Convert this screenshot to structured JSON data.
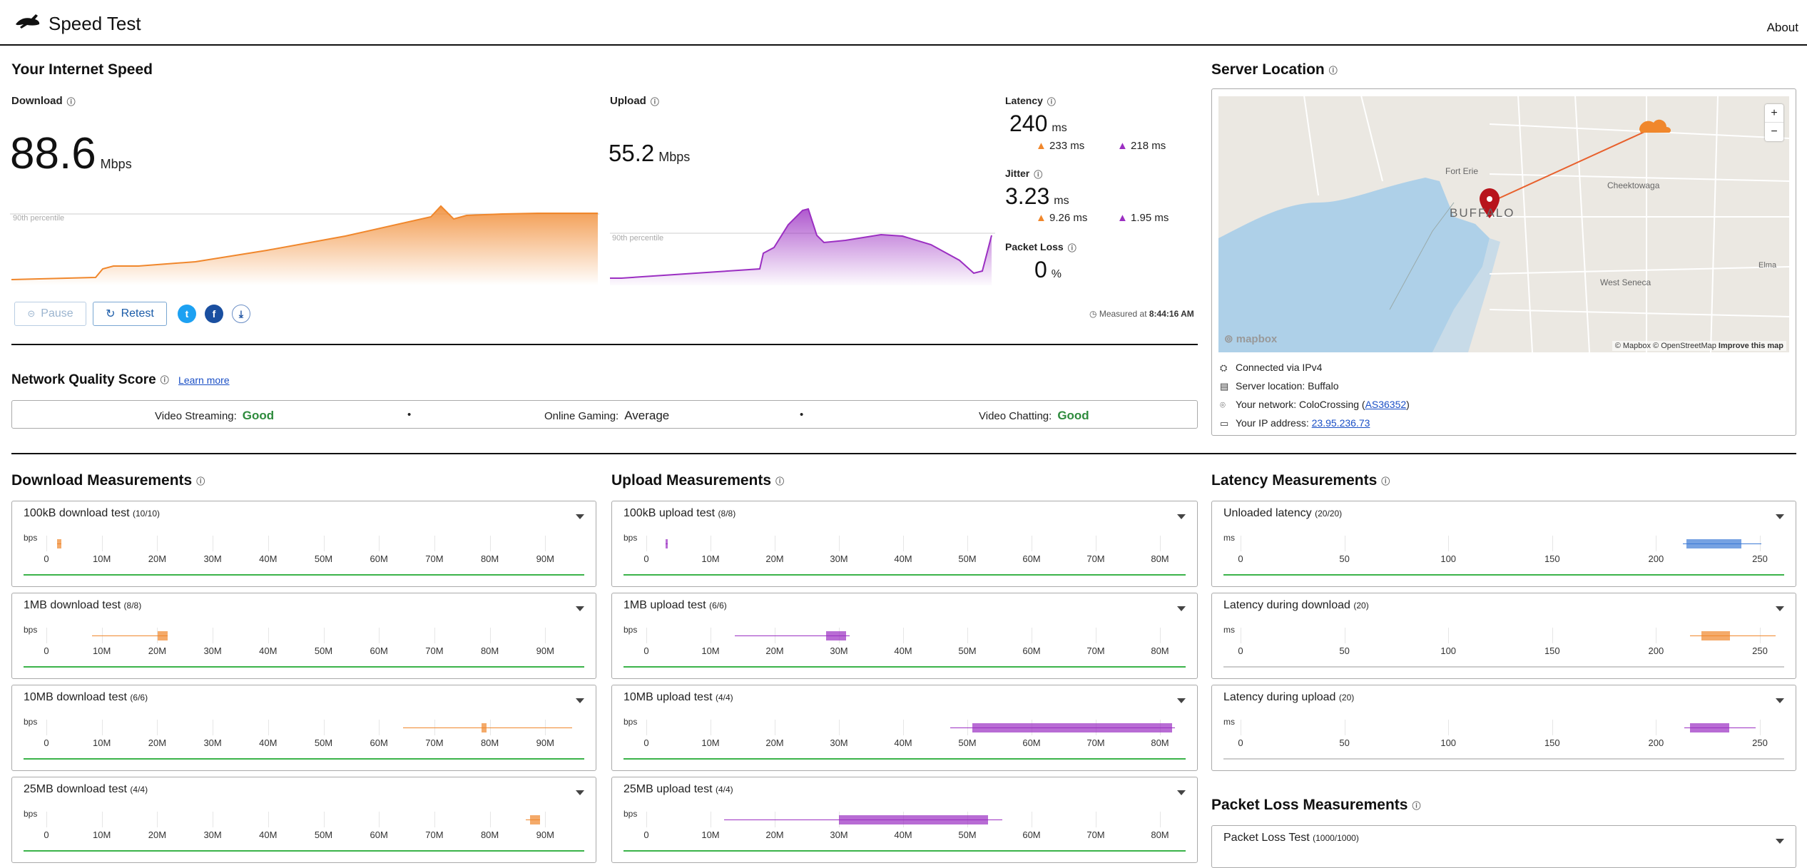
{
  "header": {
    "title": "Speed Test",
    "about": "About"
  },
  "speed": {
    "section_title": "Your Internet Speed",
    "download_label": "Download",
    "download_value": "88.6",
    "download_unit": "Mbps",
    "upload_label": "Upload",
    "upload_value": "55.2",
    "upload_unit": "Mbps",
    "percentile_label": "90th percentile",
    "latency_label": "Latency",
    "latency_value": "240",
    "latency_unit": "ms",
    "latency_down": "233",
    "latency_up": "218",
    "jitter_label": "Jitter",
    "jitter_value": "3.23",
    "jitter_unit": "ms",
    "jitter_down": "9.26",
    "jitter_up": "1.95",
    "ms": "ms",
    "packet_loss_label": "Packet Loss",
    "packet_loss_value": "0",
    "packet_loss_unit": "%",
    "pause_label": "Pause",
    "retest_label": "Retest",
    "measured_prefix": "Measured at",
    "measured_time": "8:44:16 AM",
    "colors": {
      "download": "#f0872c",
      "upload": "#9b2fc2",
      "good": "#2e8b3d",
      "link": "#1a4fc6"
    }
  },
  "quality": {
    "title": "Network Quality Score",
    "learn_more": "Learn more",
    "items": [
      {
        "label": "Video Streaming:",
        "value": "Good"
      },
      {
        "label": "Online Gaming:",
        "value": "Average"
      },
      {
        "label": "Video Chatting:",
        "value": "Good"
      }
    ],
    "separator": "•"
  },
  "server": {
    "title": "Server Location",
    "map_labels": {
      "fort_erie": "Fort Erie",
      "buffalo": "BUFFALO",
      "cheektowaga": "Cheektowaga",
      "west_seneca": "West Seneca",
      "road": "Elma"
    },
    "zoom_in": "+",
    "zoom_out": "−",
    "map_brand": "mapbox",
    "attribution": "© Mapbox © OpenStreetMap",
    "improve": "Improve this map",
    "connected": "Connected via IPv4",
    "location": "Server location: Buffalo",
    "network_prefix": "Your network: ColoCrossing (",
    "network_asn": "AS36352",
    "network_suffix": ")",
    "ip_prefix": "Your IP address:",
    "ip": "23.95.236.73"
  },
  "download_measurements": {
    "title": "Download Measurements",
    "unit": "bps",
    "ticks": [
      "0",
      "10M",
      "20M",
      "30M",
      "40M",
      "50M",
      "60M",
      "70M",
      "80M",
      "90M"
    ],
    "tests": [
      {
        "name": "100kB download test",
        "count": "(10/10)"
      },
      {
        "name": "1MB download test",
        "count": "(8/8)"
      },
      {
        "name": "10MB download test",
        "count": "(6/6)"
      },
      {
        "name": "25MB download test",
        "count": "(4/4)"
      }
    ]
  },
  "upload_measurements": {
    "title": "Upload Measurements",
    "unit": "bps",
    "ticks": [
      "0",
      "10M",
      "20M",
      "30M",
      "40M",
      "50M",
      "60M",
      "70M",
      "80M"
    ],
    "tests": [
      {
        "name": "100kB upload test",
        "count": "(8/8)"
      },
      {
        "name": "1MB upload test",
        "count": "(6/6)"
      },
      {
        "name": "10MB upload test",
        "count": "(4/4)"
      },
      {
        "name": "25MB upload test",
        "count": "(4/4)"
      }
    ]
  },
  "latency_measurements": {
    "title": "Latency Measurements",
    "unit": "ms",
    "ticks": [
      "0",
      "50",
      "100",
      "150",
      "200",
      "250"
    ],
    "tests": [
      {
        "name": "Unloaded latency",
        "count": "(20/20)"
      },
      {
        "name": "Latency during download",
        "count": "(20)"
      },
      {
        "name": "Latency during upload",
        "count": "(20)"
      }
    ]
  },
  "packet_loss_measurements": {
    "title": "Packet Loss Measurements",
    "tests": [
      {
        "name": "Packet Loss Test",
        "count": "(1000/1000)"
      }
    ]
  }
}
